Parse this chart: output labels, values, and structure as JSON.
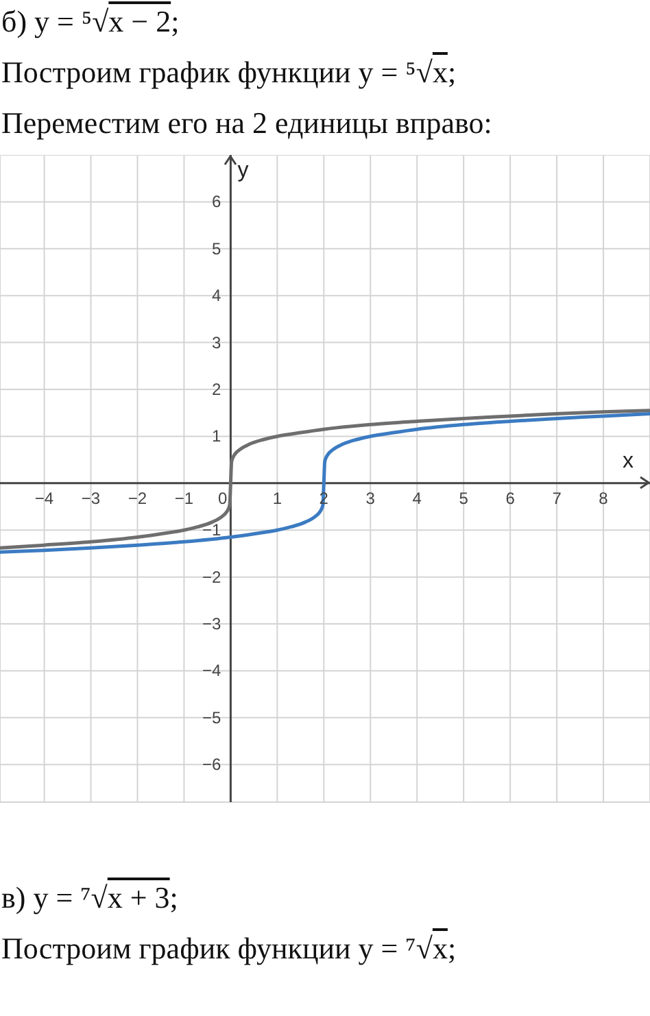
{
  "chart_data": {
    "type": "line",
    "title": "б) y = ⁵√x − 2;",
    "subtitle": "Построим график функции y = ⁵√x;",
    "annotations": [
      "Переместим его на 2 единицы вправо:",
      "в) y = ⁷√x + 3;",
      "Построим график функции y = ⁷√x;"
    ],
    "xlabel": "x",
    "ylabel": "y",
    "series": [
      {
        "color": "#6e6e6e",
        "x": [
          -4.95,
          -4,
          -3,
          -2,
          -1.5,
          -1,
          -0.7,
          -0.4,
          -0.2,
          -0.1,
          -0.05,
          -0.02,
          0,
          0.02,
          0.05,
          0.1,
          0.2,
          0.4,
          0.7,
          1,
          1.5,
          2,
          3,
          4,
          5,
          6,
          7,
          8,
          9
        ],
        "values": [
          -1.38,
          -1.32,
          -1.25,
          -1.15,
          -1.08,
          -1,
          -0.93,
          -0.83,
          -0.72,
          -0.63,
          -0.55,
          -0.46,
          0,
          0.46,
          0.55,
          0.63,
          0.72,
          0.83,
          0.93,
          1,
          1.08,
          1.15,
          1.25,
          1.32,
          1.38,
          1.43,
          1.48,
          1.52,
          1.55
        ]
      },
      {
        "color": "#3b7bc2",
        "x": [
          -4.95,
          -4,
          -3,
          -2,
          -1,
          0,
          0.5,
          1,
          1.3,
          1.6,
          1.8,
          1.9,
          1.95,
          1.98,
          2,
          2.02,
          2.05,
          2.1,
          2.2,
          2.4,
          2.7,
          3,
          3.5,
          4,
          5,
          6,
          7,
          8,
          9
        ],
        "values": [
          -1.47,
          -1.43,
          -1.38,
          -1.32,
          -1.25,
          -1.15,
          -1.08,
          -1,
          -0.93,
          -0.83,
          -0.72,
          -0.63,
          -0.55,
          -0.46,
          0,
          0.46,
          0.55,
          0.63,
          0.72,
          0.83,
          0.93,
          1,
          1.08,
          1.15,
          1.25,
          1.32,
          1.38,
          1.43,
          1.48
        ]
      }
    ],
    "xlim": [
      -4.95,
      9
    ],
    "ylim": [
      -6.8,
      7
    ],
    "xticks": [
      -4,
      -3,
      -2,
      -1,
      0,
      1,
      2,
      3,
      4,
      5,
      6,
      7,
      8
    ],
    "yticks": [
      -6,
      -5,
      -4,
      -3,
      -2,
      -1,
      {
        "value": 0,
        "label": null
      },
      1,
      2,
      3,
      4,
      5,
      6
    ],
    "grid": true
  }
}
